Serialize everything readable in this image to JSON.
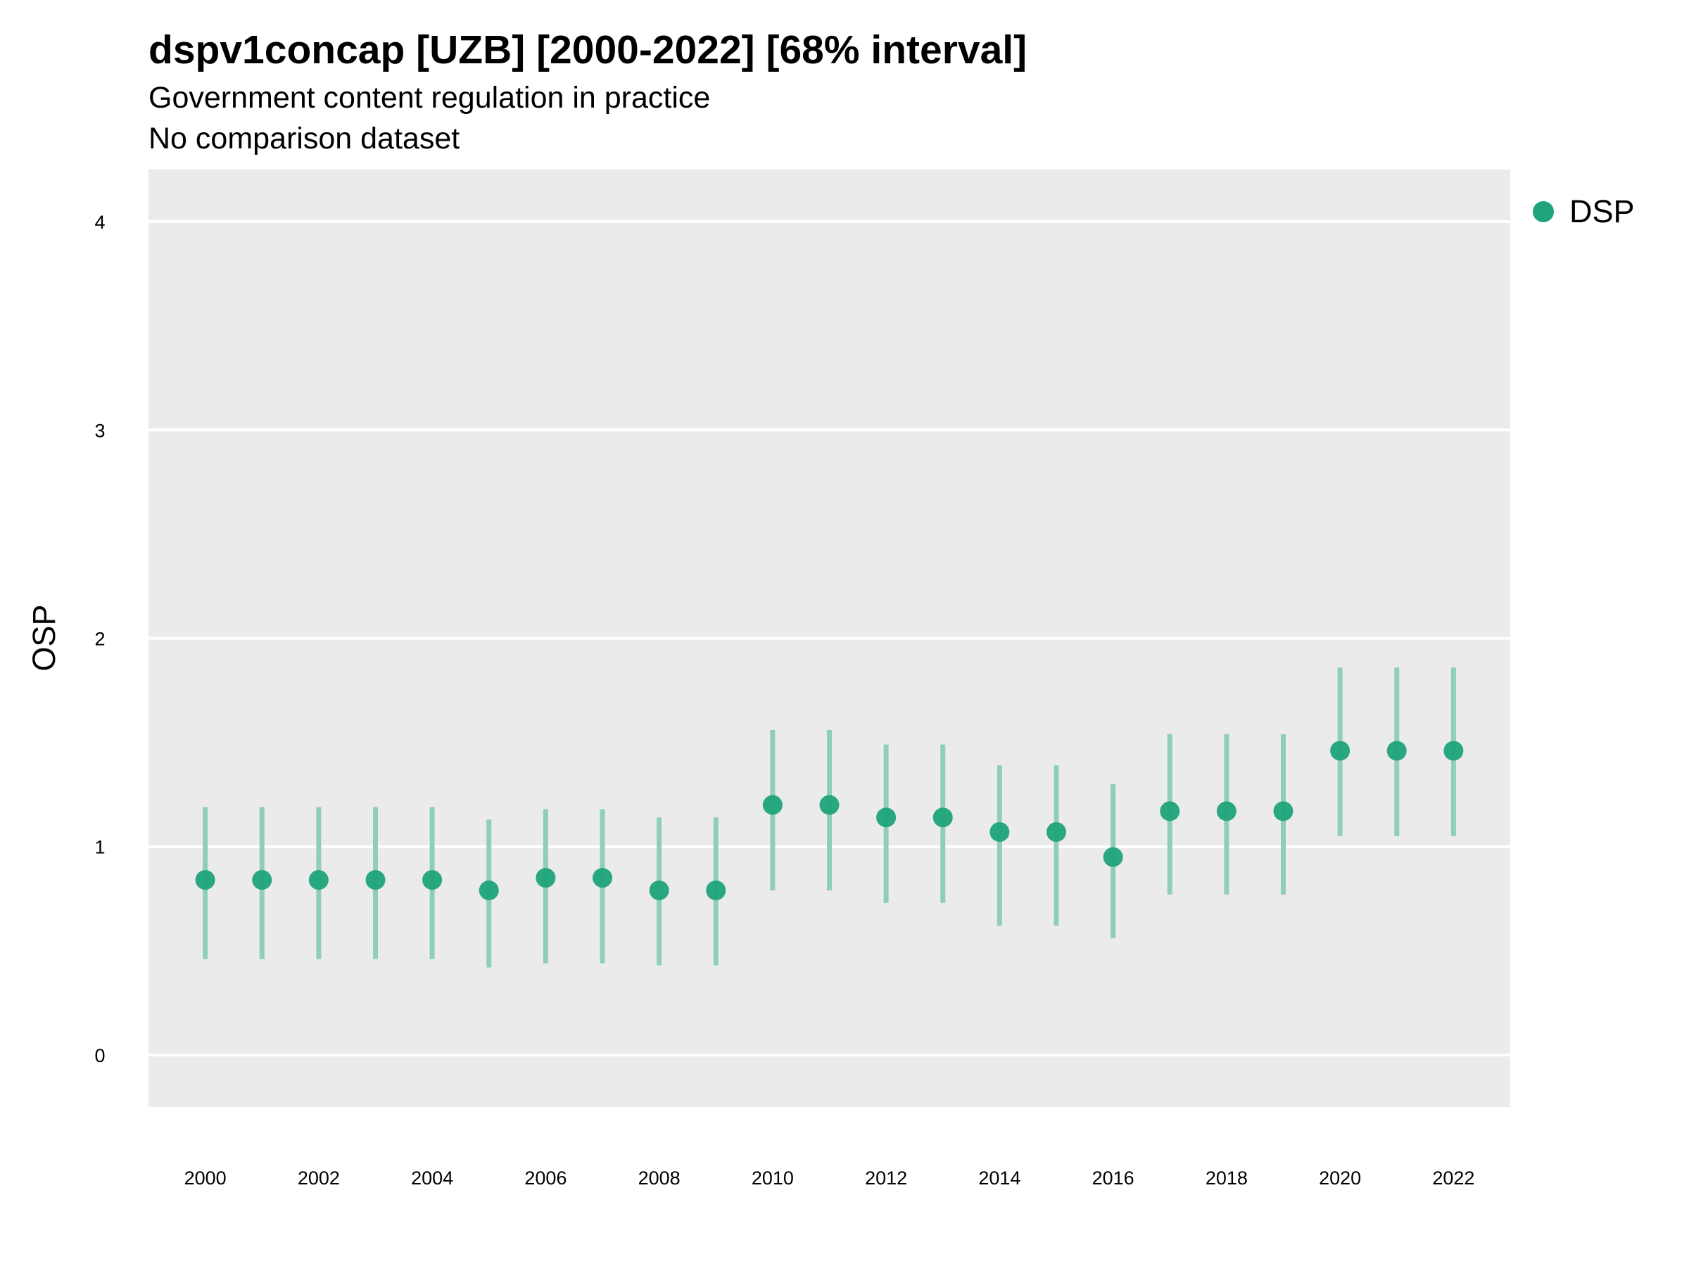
{
  "chart_data": {
    "type": "scatter",
    "title": "dspv1concap [UZB] [2000-2022] [68% interval]",
    "subtitle": "Government content regulation in practice",
    "caption": "No comparison dataset",
    "xlabel": "",
    "ylabel": "OSP",
    "ylim": [
      -0.25,
      4.25
    ],
    "xlim": [
      1999,
      2023
    ],
    "y_ticks": [
      "0",
      "1",
      "2",
      "3",
      "4"
    ],
    "x_ticks": [
      "2000",
      "2002",
      "2004",
      "2006",
      "2008",
      "2010",
      "2012",
      "2014",
      "2016",
      "2018",
      "2020",
      "2022"
    ],
    "grid": true,
    "legend_position": "top-right",
    "colors": {
      "point": "#1fa37a",
      "interval": "#8fcfb8",
      "panel": "#ebebeb",
      "grid": "#ffffff"
    },
    "series": [
      {
        "name": "DSP",
        "x": [
          2000,
          2001,
          2002,
          2003,
          2004,
          2005,
          2006,
          2007,
          2008,
          2009,
          2010,
          2011,
          2012,
          2013,
          2014,
          2015,
          2016,
          2017,
          2018,
          2019,
          2020,
          2021,
          2022
        ],
        "y": [
          0.84,
          0.84,
          0.84,
          0.84,
          0.84,
          0.79,
          0.85,
          0.85,
          0.79,
          0.79,
          1.2,
          1.2,
          1.14,
          1.14,
          1.07,
          1.07,
          0.95,
          1.17,
          1.17,
          1.17,
          1.46,
          1.46,
          1.46
        ],
        "lower": [
          0.46,
          0.46,
          0.46,
          0.46,
          0.46,
          0.42,
          0.44,
          0.44,
          0.43,
          0.43,
          0.79,
          0.79,
          0.73,
          0.73,
          0.62,
          0.62,
          0.56,
          0.77,
          0.77,
          0.77,
          1.05,
          1.05,
          1.05
        ],
        "upper": [
          1.19,
          1.19,
          1.19,
          1.19,
          1.19,
          1.13,
          1.18,
          1.18,
          1.14,
          1.14,
          1.56,
          1.56,
          1.49,
          1.49,
          1.39,
          1.39,
          1.3,
          1.54,
          1.54,
          1.54,
          1.86,
          1.86,
          1.86
        ]
      }
    ]
  }
}
